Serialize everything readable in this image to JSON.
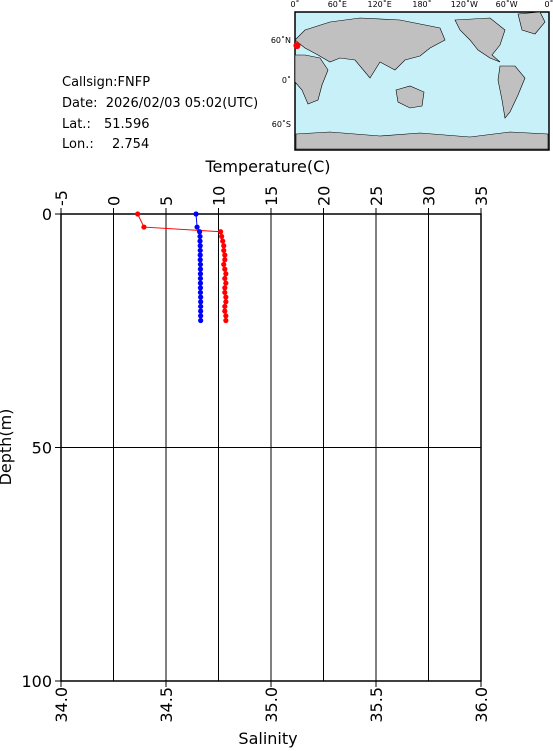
{
  "info": {
    "callsign": "Callsign:FNFP",
    "date": "Date:  2026/02/03 05:02(UTC)",
    "lat_label": "Lat.:",
    "lat": 51.596,
    "lon_label": "Lon.:",
    "lon": 2.754
  },
  "map": {
    "lon_labels": [
      "0˚",
      "60˚E",
      "120˚E",
      "180˚",
      "120˚W",
      "60˚W",
      "0˚"
    ],
    "lat_labels": [
      "60˚N",
      "0˚",
      "60˚S"
    ],
    "marker_color": "#ff0000"
  },
  "chart_data": {
    "type": "profile",
    "xlabel_top": "Temperature(C)",
    "xlabel_bottom": "Salinity",
    "ylabel": "Depth(m)",
    "depth": [
      0,
      2.8,
      3.8,
      4.8,
      5.8,
      6.8,
      7.8,
      8.8,
      9.8,
      10.8,
      11.8,
      12.8,
      13.8,
      14.8,
      15.8,
      16.8,
      17.8,
      18.8,
      19.8,
      20.8,
      21.8,
      22.8
    ],
    "temperature": {
      "color": "#ff0000",
      "values": [
        2.3,
        2.9,
        10.2,
        10.3,
        10.4,
        10.5,
        10.5,
        10.6,
        10.6,
        10.5,
        10.6,
        10.7,
        10.6,
        10.7,
        10.6,
        10.6,
        10.7,
        10.7,
        10.6,
        10.6,
        10.7,
        10.7
      ]
    },
    "salinity": {
      "color": "#0000ff",
      "values": [
        34.643,
        34.648,
        34.66,
        34.662,
        34.662,
        34.663,
        34.663,
        34.663,
        34.663,
        34.664,
        34.664,
        34.664,
        34.664,
        34.664,
        34.664,
        34.664,
        34.665,
        34.665,
        34.665,
        34.665,
        34.665,
        34.665
      ]
    },
    "tlim": [
      -5,
      35
    ],
    "tticks": [
      -5,
      0,
      5,
      10,
      15,
      20,
      25,
      30,
      35
    ],
    "slim": [
      34,
      36
    ],
    "sticks": [
      {
        "value": 34,
        "label": "34.0"
      },
      {
        "value": 34.5,
        "label": "34.5"
      },
      {
        "value": 35,
        "label": "35.0"
      },
      {
        "value": 35.5,
        "label": "35.5"
      },
      {
        "value": 36,
        "label": "36.0"
      }
    ],
    "ylim": [
      0,
      100
    ],
    "yticks": [
      0,
      50,
      100
    ],
    "grid": true
  }
}
